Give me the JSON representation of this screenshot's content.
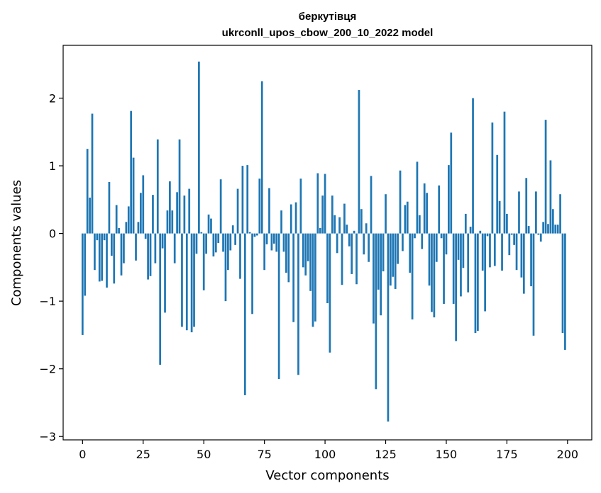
{
  "chart_data": {
    "type": "bar",
    "title": "беркутівця",
    "subtitle": "ukrconll_upos_cbow_200_10_2022 model",
    "xlabel": "Vector components",
    "ylabel": "Components values",
    "xlim": [
      -8,
      210
    ],
    "ylim": [
      -3.05,
      2.78
    ],
    "xticks": [
      0,
      25,
      50,
      75,
      100,
      125,
      150,
      175,
      200
    ],
    "yticks": [
      -3,
      -2,
      -1,
      0,
      1,
      2
    ],
    "ytick_labels": [
      "−3",
      "−2",
      "−1",
      "0",
      "1",
      "2"
    ],
    "grid": false,
    "legend": "none",
    "bar_color": "#1f77b4",
    "x": [
      0,
      1,
      2,
      3,
      4,
      5,
      6,
      7,
      8,
      9,
      10,
      11,
      12,
      13,
      14,
      15,
      16,
      17,
      18,
      19,
      20,
      21,
      22,
      23,
      24,
      25,
      26,
      27,
      28,
      29,
      30,
      31,
      32,
      33,
      34,
      35,
      36,
      37,
      38,
      39,
      40,
      41,
      42,
      43,
      44,
      45,
      46,
      47,
      48,
      49,
      50,
      51,
      52,
      53,
      54,
      55,
      56,
      57,
      58,
      59,
      60,
      61,
      62,
      63,
      64,
      65,
      66,
      67,
      68,
      69,
      70,
      71,
      72,
      73,
      74,
      75,
      76,
      77,
      78,
      79,
      80,
      81,
      82,
      83,
      84,
      85,
      86,
      87,
      88,
      89,
      90,
      91,
      92,
      93,
      94,
      95,
      96,
      97,
      98,
      99,
      100,
      101,
      102,
      103,
      104,
      105,
      106,
      107,
      108,
      109,
      110,
      111,
      112,
      113,
      114,
      115,
      116,
      117,
      118,
      119,
      120,
      121,
      122,
      123,
      124,
      125,
      126,
      127,
      128,
      129,
      130,
      131,
      132,
      133,
      134,
      135,
      136,
      137,
      138,
      139,
      140,
      141,
      142,
      143,
      144,
      145,
      146,
      147,
      148,
      149,
      150,
      151,
      152,
      153,
      154,
      155,
      156,
      157,
      158,
      159,
      160,
      161,
      162,
      163,
      164,
      165,
      166,
      167,
      168,
      169,
      170,
      171,
      172,
      173,
      174,
      175,
      176,
      177,
      178,
      179,
      180,
      181,
      182,
      183,
      184,
      185,
      186,
      187,
      188,
      189,
      190,
      191,
      192,
      193,
      194,
      195,
      196,
      197,
      198,
      199
    ],
    "values": [
      -1.5,
      -0.92,
      1.25,
      0.53,
      1.77,
      -0.54,
      -0.1,
      -0.71,
      -0.7,
      -0.1,
      -0.8,
      0.76,
      -0.33,
      -0.74,
      0.42,
      0.08,
      -0.62,
      -0.44,
      0.17,
      0.4,
      1.81,
      1.12,
      -0.4,
      0.17,
      0.6,
      0.86,
      -0.08,
      -0.68,
      -0.63,
      0.57,
      -0.44,
      1.39,
      -1.94,
      -0.22,
      -1.17,
      0.34,
      0.77,
      0.34,
      -0.44,
      0.61,
      1.39,
      -1.38,
      0.56,
      -1.43,
      0.66,
      -1.46,
      -1.38,
      -0.3,
      2.54,
      0.02,
      -0.84,
      -0.3,
      0.28,
      0.22,
      -0.34,
      -0.28,
      -0.14,
      0.8,
      -0.27,
      -1.0,
      -0.54,
      -0.25,
      0.12,
      -0.17,
      0.66,
      -0.67,
      1.0,
      -2.39,
      1.01,
      0.02,
      -1.19,
      -0.05,
      -0.03,
      0.81,
      2.25,
      -0.54,
      -0.16,
      0.67,
      -0.25,
      -0.15,
      -0.27,
      -2.15,
      0.34,
      -0.27,
      -0.58,
      -0.72,
      0.43,
      -1.31,
      0.46,
      -2.09,
      0.81,
      -0.5,
      -0.62,
      -0.41,
      -0.85,
      -1.38,
      -1.3,
      0.89,
      0.08,
      0.56,
      0.88,
      -1.03,
      -1.76,
      0.56,
      0.27,
      -0.29,
      0.24,
      -0.76,
      0.44,
      0.13,
      -0.19,
      -0.6,
      0.04,
      -0.75,
      2.12,
      0.36,
      -0.31,
      0.15,
      -0.42,
      0.85,
      -1.33,
      -2.3,
      -0.83,
      -1.21,
      -0.56,
      0.58,
      -2.78,
      -0.77,
      -0.64,
      -0.82,
      -0.45,
      0.93,
      -0.26,
      0.42,
      0.47,
      -0.58,
      -1.27,
      -0.07,
      1.06,
      0.27,
      -0.23,
      0.74,
      0.6,
      -0.77,
      -1.16,
      -1.24,
      -0.42,
      0.71,
      -0.07,
      -1.04,
      -0.31,
      1.01,
      1.49,
      -1.04,
      -1.59,
      -0.39,
      -0.93,
      -0.51,
      0.29,
      -0.87,
      0.1,
      2.0,
      -1.47,
      -1.44,
      0.04,
      -0.55,
      -1.15,
      -0.04,
      -0.5,
      1.64,
      -0.48,
      1.16,
      0.48,
      -0.55,
      1.8,
      0.29,
      -0.32,
      -0.02,
      -0.17,
      -0.54,
      0.62,
      -0.65,
      -0.89,
      0.82,
      0.11,
      -0.78,
      -1.51,
      0.62,
      -0.02,
      -0.12,
      0.17,
      1.68,
      0.14,
      1.08,
      0.36,
      0.13,
      0.13,
      0.58,
      -1.47,
      -1.72
    ]
  }
}
